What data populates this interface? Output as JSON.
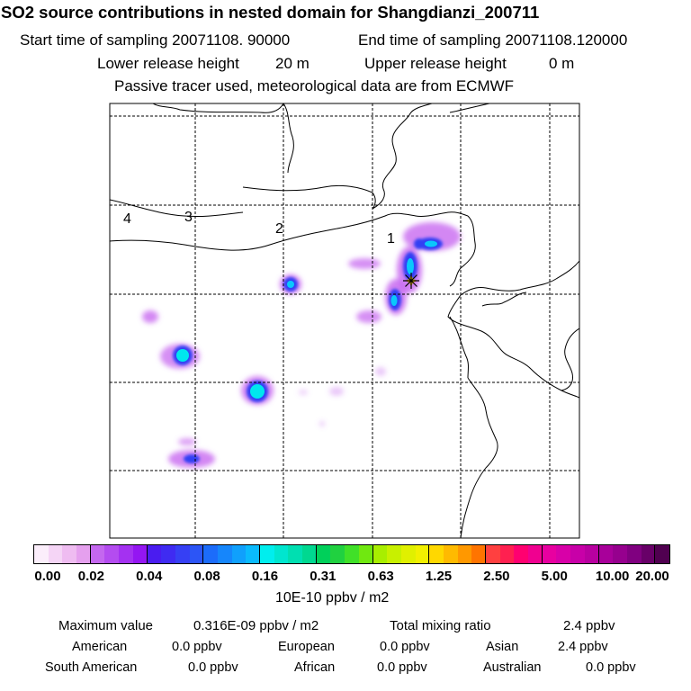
{
  "header": {
    "title": "SO2 source contributions in nested domain for Shangdianzi_200711",
    "start_label": "Start time of sampling 20071108. 90000",
    "end_label": "End time of sampling 20071108.120000",
    "lower_label": "Lower release height",
    "lower_value": "20 m",
    "upper_label": "Upper release height",
    "upper_value": "0 m",
    "tracer_note": "Passive tracer used, meteorological data are from ECMWF"
  },
  "map": {
    "region_labels": [
      "1",
      "2",
      "3",
      "4"
    ],
    "station_marker": "asterisk-star-icon",
    "plumes": [
      {
        "kind": "cyan-core",
        "level": 0.2
      },
      {
        "kind": "violet",
        "level": 0.03
      }
    ]
  },
  "legend": {
    "tick_labels": [
      "0.00",
      "0.02",
      "0.04",
      "0.08",
      "0.16",
      "0.31",
      "0.63",
      "1.25",
      "2.50",
      "5.00",
      "10.00",
      "20.00"
    ],
    "unit_label": "10E-10 ppbv / m2",
    "colors": [
      "#fbeefb",
      "#f5d5f6",
      "#efbcf1",
      "#e5a0ee",
      "#c467ef",
      "#b44cf0",
      "#a431f1",
      "#9416f2",
      "#4a1cf0",
      "#3f2bf2",
      "#3640f4",
      "#2c55f6",
      "#1c6cfa",
      "#1686fb",
      "#10a0fc",
      "#0abafd",
      "#00eeee",
      "#00e6cf",
      "#00dfb1",
      "#00d890",
      "#00d05a",
      "#20d140",
      "#40e028",
      "#70e810",
      "#a8ee00",
      "#c8f000",
      "#e0f000",
      "#f2f000",
      "#ffd800",
      "#ffba00",
      "#ff9800",
      "#ff7400",
      "#ff4040",
      "#ff2050",
      "#ff0070",
      "#f00090",
      "#e800a0",
      "#d800a8",
      "#c800a8",
      "#b800a0",
      "#a8009a",
      "#96008e",
      "#800080",
      "#680068",
      "#500050"
    ]
  },
  "stats": {
    "max_label": "Maximum value",
    "max_value": "0.316E-09 ppbv / m2",
    "total_label": "Total mixing ratio",
    "total_value": "2.4 ppbv",
    "regions": [
      {
        "name": "American",
        "value": "0.0 ppbv"
      },
      {
        "name": "European",
        "value": "0.0 ppbv"
      },
      {
        "name": "Asian",
        "value": "2.4 ppbv"
      },
      {
        "name": "South American",
        "value": "0.0 ppbv"
      },
      {
        "name": "African",
        "value": "0.0 ppbv"
      },
      {
        "name": "Australian",
        "value": "0.0 ppbv"
      }
    ]
  }
}
